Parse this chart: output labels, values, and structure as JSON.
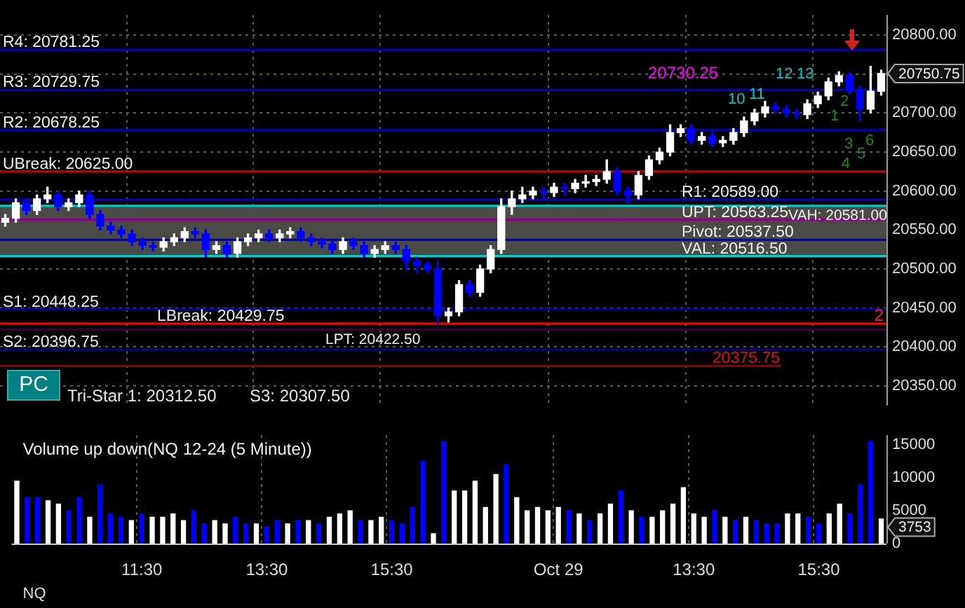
{
  "chart_data": [
    {
      "type": "candlestick",
      "categories": [
        null,
        null,
        null,
        null,
        null,
        null,
        null,
        null,
        null,
        null,
        null,
        null,
        null,
        null,
        null,
        null,
        null,
        null,
        null,
        null,
        null,
        null,
        null,
        null,
        null,
        null,
        null,
        null,
        null,
        null,
        null,
        null,
        null,
        null,
        null,
        null,
        null,
        null,
        null,
        null,
        null,
        null,
        null,
        null,
        null,
        null,
        null,
        null,
        null,
        null,
        null,
        null,
        null,
        null,
        null,
        null,
        null,
        null,
        null,
        null,
        null,
        null,
        null,
        null,
        null,
        null,
        null,
        null,
        null,
        null,
        null,
        null,
        null,
        null,
        null,
        null,
        null,
        null,
        null,
        null,
        null,
        null,
        null,
        null
      ],
      "ohlc": [
        [
          20560,
          20570,
          20555,
          20565
        ],
        [
          20565,
          20590,
          20560,
          20585
        ],
        [
          20585,
          20590,
          20570,
          20575
        ],
        [
          20575,
          20595,
          20570,
          20590
        ],
        [
          20590,
          20605,
          20585,
          20595
        ],
        [
          20595,
          20600,
          20575,
          20580
        ],
        [
          20580,
          20590,
          20575,
          20585
        ],
        [
          20585,
          20600,
          20580,
          20595
        ],
        [
          20595,
          20600,
          20565,
          20570
        ],
        [
          20570,
          20575,
          20550,
          20555
        ],
        [
          20555,
          20560,
          20545,
          20550
        ],
        [
          20550,
          20555,
          20540,
          20545
        ],
        [
          20545,
          20550,
          20530,
          20535
        ],
        [
          20535,
          20540,
          20525,
          20530
        ],
        [
          20530,
          20535,
          20523,
          20528
        ],
        [
          20528,
          20540,
          20523,
          20535
        ],
        [
          20535,
          20545,
          20530,
          20540
        ],
        [
          20540,
          20553,
          20535,
          20548
        ],
        [
          20548,
          20553,
          20540,
          20545
        ],
        [
          20545,
          20550,
          20515,
          20525
        ],
        [
          20525,
          20535,
          20520,
          20530
        ],
        [
          20530,
          20535,
          20515,
          20520
        ],
        [
          20520,
          20540,
          20515,
          20535
        ],
        [
          20535,
          20545,
          20530,
          20540
        ],
        [
          20540,
          20550,
          20535,
          20545
        ],
        [
          20545,
          20550,
          20535,
          20540
        ],
        [
          20540,
          20550,
          20535,
          20545
        ],
        [
          20545,
          20553,
          20540,
          20548
        ],
        [
          20548,
          20553,
          20535,
          20540
        ],
        [
          20540,
          20545,
          20530,
          20535
        ],
        [
          20535,
          20540,
          20527,
          20532
        ],
        [
          20532,
          20537,
          20520,
          20525
        ],
        [
          20525,
          20540,
          20520,
          20535
        ],
        [
          20535,
          20540,
          20525,
          20530
        ],
        [
          20530,
          20535,
          20515,
          20520
        ],
        [
          20520,
          20530,
          20515,
          20525
        ],
        [
          20525,
          20535,
          20520,
          20530
        ],
        [
          20530,
          20535,
          20520,
          20525
        ],
        [
          20525,
          20530,
          20500,
          20510
        ],
        [
          20510,
          20515,
          20495,
          20505
        ],
        [
          20505,
          20510,
          20495,
          20500
        ],
        [
          20500,
          20510,
          20430,
          20440
        ],
        [
          20440,
          20450,
          20432,
          20445
        ],
        [
          20445,
          20485,
          20440,
          20480
        ],
        [
          20480,
          20485,
          20465,
          20470
        ],
        [
          20470,
          20505,
          20465,
          20500
        ],
        [
          20500,
          20530,
          20495,
          20525
        ],
        [
          20525,
          20590,
          20520,
          20580
        ],
        [
          20580,
          20600,
          20570,
          20590
        ],
        [
          20590,
          20605,
          20585,
          20595
        ],
        [
          20595,
          20605,
          20590,
          20600
        ],
        [
          20600,
          20605,
          20590,
          20598
        ],
        [
          20598,
          20610,
          20593,
          20605
        ],
        [
          20605,
          20610,
          20595,
          20603
        ],
        [
          20603,
          20615,
          20598,
          20610
        ],
        [
          20610,
          20620,
          20605,
          20612
        ],
        [
          20612,
          20620,
          20607,
          20615
        ],
        [
          20615,
          20640,
          20610,
          20625
        ],
        [
          20625,
          20630,
          20595,
          20600
        ],
        [
          20600,
          20605,
          20585,
          20595
        ],
        [
          20595,
          20625,
          20590,
          20620
        ],
        [
          20620,
          20645,
          20615,
          20640
        ],
        [
          20640,
          20655,
          20635,
          20650
        ],
        [
          20650,
          20685,
          20645,
          20675
        ],
        [
          20675,
          20685,
          20670,
          20680
        ],
        [
          20680,
          20685,
          20660,
          20665
        ],
        [
          20665,
          20675,
          20660,
          20670
        ],
        [
          20670,
          20675,
          20657,
          20662
        ],
        [
          20662,
          20670,
          20657,
          20665
        ],
        [
          20665,
          20680,
          20660,
          20675
        ],
        [
          20675,
          20695,
          20670,
          20690
        ],
        [
          20690,
          20705,
          20685,
          20700
        ],
        [
          20700,
          20715,
          20695,
          20708
        ],
        [
          20708,
          20713,
          20700,
          20705
        ],
        [
          20705,
          20710,
          20695,
          20700
        ],
        [
          20700,
          20705,
          20693,
          20698
        ],
        [
          20698,
          20717,
          20693,
          20712
        ],
        [
          20712,
          20727,
          20707,
          20722
        ],
        [
          20722,
          20745,
          20717,
          20740
        ],
        [
          20740,
          20753,
          20735,
          20748
        ],
        [
          20748,
          20752,
          20725,
          20730
        ],
        [
          20730,
          20735,
          20690,
          20705
        ],
        [
          20705,
          20760,
          20700,
          20728
        ],
        [
          20728,
          20755,
          20723,
          20750.75
        ]
      ],
      "colors": [
        "#ffffff",
        "#ffffff",
        "#0000ff",
        "#ffffff",
        "#ffffff",
        "#0000ff",
        "#ffffff",
        "#ffffff",
        "#0000ff",
        "#0000ff",
        "#0000ff",
        "#0000ff",
        "#0000ff",
        "#0000ff",
        "#0000ff",
        "#ffffff",
        "#ffffff",
        "#ffffff",
        "#0000ff",
        "#0000ff",
        "#ffffff",
        "#0000ff",
        "#ffffff",
        "#ffffff",
        "#ffffff",
        "#0000ff",
        "#ffffff",
        "#ffffff",
        "#0000ff",
        "#0000ff",
        "#0000ff",
        "#0000ff",
        "#ffffff",
        "#0000ff",
        "#0000ff",
        "#ffffff",
        "#ffffff",
        "#0000ff",
        "#0000ff",
        "#0000ff",
        "#0000ff",
        "#0000ff",
        "#ffffff",
        "#ffffff",
        "#0000ff",
        "#ffffff",
        "#ffffff",
        "#ffffff",
        "#ffffff",
        "#ffffff",
        "#ffffff",
        "#0000ff",
        "#ffffff",
        "#0000ff",
        "#ffffff",
        "#ffffff",
        "#ffffff",
        "#ffffff",
        "#0000ff",
        "#0000ff",
        "#ffffff",
        "#ffffff",
        "#ffffff",
        "#ffffff",
        "#ffffff",
        "#0000ff",
        "#ffffff",
        "#0000ff",
        "#ffffff",
        "#ffffff",
        "#ffffff",
        "#ffffff",
        "#ffffff",
        "#0000ff",
        "#0000ff",
        "#0000ff",
        "#ffffff",
        "#ffffff",
        "#ffffff",
        "#ffffff",
        "#0000ff",
        "#0000ff",
        "#ffffff",
        "#ffffff"
      ],
      "ylim": [
        20325,
        20826
      ],
      "yticks": [
        {
          "value": 20350,
          "label": "20350.00"
        },
        {
          "value": 20400,
          "label": "20400.00"
        },
        {
          "value": 20450,
          "label": "20450.00"
        },
        {
          "value": 20500,
          "label": "20500.00"
        },
        {
          "value": 20550,
          "label": "20550.00"
        },
        {
          "value": 20600,
          "label": "20600.00"
        },
        {
          "value": 20650,
          "label": "20650.00"
        },
        {
          "value": 20700,
          "label": "20700.00"
        },
        {
          "value": 20750,
          "label": null
        },
        {
          "value": 20800,
          "label": "20800.00"
        }
      ],
      "bands": [
        {
          "axis": "y",
          "from": 20516.5,
          "to": 20581,
          "color": "#4b4b45"
        }
      ],
      "ref_lines": [
        {
          "axis": "y",
          "value": 20781.25,
          "label": "R4: 20781.25",
          "color": "#0000c8"
        },
        {
          "axis": "y",
          "value": 20729.75,
          "label": "R3: 20729.75",
          "color": "#0000c8"
        },
        {
          "axis": "y",
          "value": 20678.25,
          "label": "R2: 20678.25",
          "color": "#0000a0"
        },
        {
          "axis": "y",
          "value": 20625,
          "label": "UBreak: 20625.00",
          "color": "#c80000"
        },
        {
          "axis": "y",
          "value": 20589,
          "label": "R1: 20589.00",
          "color": "#0000c8"
        },
        {
          "axis": "y",
          "value": 20581,
          "label": "VAH: 20581.00",
          "color": "#00c8c8"
        },
        {
          "axis": "y",
          "value": 20563.25,
          "label": "UPT: 20563.25",
          "color": "#8b008b"
        },
        {
          "axis": "y",
          "value": 20537.5,
          "label": "Pivot: 20537.50",
          "color": "#0000c8"
        },
        {
          "axis": "y",
          "value": 20516.5,
          "label": "VAL: 20516.50",
          "color": "#00d0d0"
        },
        {
          "axis": "y",
          "value": 20448.25,
          "label": "S1: 20448.25",
          "color": "#000080"
        },
        {
          "axis": "y",
          "value": 20429.75,
          "label": "LBreak: 20429.75",
          "color": "#ff0000"
        },
        {
          "axis": "y",
          "value": 20422.5,
          "label": "LPT: 20422.50",
          "color": "#400040"
        },
        {
          "axis": "y",
          "value": 20396.75,
          "label": "S2: 20396.75",
          "color": "#000080"
        },
        {
          "axis": "y",
          "value": 20375.75,
          "label": "20375.75",
          "color": "#8b0000"
        }
      ],
      "annotations": [
        "PC",
        "Tri-Star 1: 20312.50",
        "S3: 20307.50",
        "20730.25",
        "10",
        "11",
        "12",
        "13",
        "1",
        "2",
        "3",
        "4",
        "5",
        "6",
        "2",
        "20750.75"
      ],
      "grid": true,
      "tick_labels": "y"
    },
    {
      "type": "bar",
      "title": "Volume up down(NQ 12-24 (5 Minute))",
      "categories": [
        null,
        null,
        null,
        null,
        null,
        null,
        null,
        null,
        null,
        null,
        null,
        null,
        "11:30",
        null,
        null,
        null,
        null,
        null,
        null,
        null,
        null,
        null,
        null,
        null,
        "13:30",
        null,
        null,
        null,
        null,
        null,
        null,
        null,
        null,
        null,
        null,
        null,
        "15:30",
        null,
        null,
        null,
        null,
        null,
        null,
        null,
        null,
        null,
        null,
        null,
        null,
        null,
        null,
        null,
        "Oct 29",
        null,
        null,
        null,
        null,
        null,
        null,
        null,
        null,
        null,
        null,
        null,
        null,
        "13:30",
        null,
        null,
        null,
        null,
        null,
        null,
        null,
        null,
        null,
        null,
        null,
        "15:30",
        null,
        null,
        null,
        null,
        null,
        null
      ],
      "stacked": true,
      "series": [
        {
          "color": "#ffffff",
          "values": [
            9500,
            null,
            null,
            6500,
            6000,
            null,
            null,
            4000,
            null,
            null,
            null,
            3500,
            null,
            4000,
            4000,
            4500,
            3500,
            null,
            null,
            3500,
            3000,
            null,
            null,
            3000,
            null,
            null,
            3000,
            null,
            3500,
            null,
            4000,
            4500,
            5000,
            null,
            3500,
            4000,
            null,
            null,
            null,
            null,
            1500,
            null,
            8000,
            8000,
            9500,
            5500,
            10500,
            null,
            7000,
            5000,
            5500,
            5000,
            5500,
            null,
            4500,
            null,
            4500,
            6000,
            null,
            5000,
            null,
            4000,
            5000,
            6000,
            8500,
            4500,
            4000,
            null,
            4000,
            null,
            4000,
            null,
            null,
            null,
            4500,
            4500,
            null,
            null,
            4500,
            6000,
            null,
            null,
            null,
            3753
          ]
        },
        {
          "color": "#0000ff",
          "values": [
            null,
            7000,
            7000,
            null,
            null,
            5000,
            7000,
            null,
            9000,
            4500,
            4000,
            null,
            4500,
            null,
            null,
            null,
            null,
            5000,
            3000,
            null,
            null,
            4000,
            3000,
            null,
            2500,
            3500,
            null,
            3500,
            null,
            3000,
            null,
            null,
            null,
            3500,
            null,
            null,
            3500,
            3000,
            5500,
            12500,
            null,
            15500,
            null,
            null,
            null,
            null,
            null,
            12000,
            null,
            null,
            null,
            null,
            null,
            5000,
            null,
            3500,
            null,
            null,
            8000,
            null,
            4000,
            null,
            null,
            null,
            null,
            null,
            null,
            5000,
            null,
            3500,
            null,
            3500,
            3000,
            3000,
            null,
            null,
            4000,
            3000,
            null,
            null,
            4500,
            9000,
            15500,
            null
          ]
        }
      ],
      "ylim": [
        0,
        16500
      ],
      "yticks": [
        0,
        5000,
        10000,
        15000
      ],
      "annotations": [
        "3753",
        "NQ"
      ],
      "grid": "x"
    }
  ]
}
